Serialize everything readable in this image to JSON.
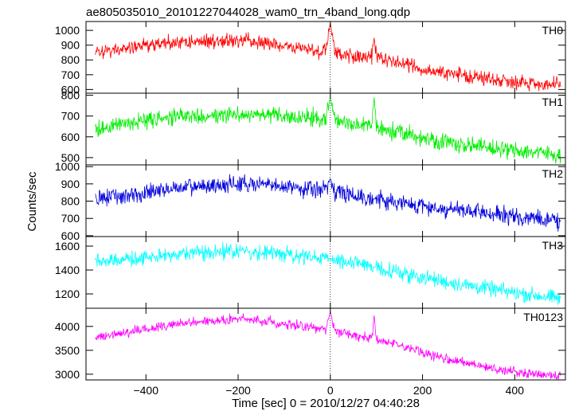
{
  "chart_data": {
    "type": "line",
    "title": "ae805035010_20101227044028_wam0_trn_4band_long.qdp",
    "xlabel": "Time [sec] 0 = 2010/12/27 04:40:28",
    "ylabel": "Counts/sec",
    "xlim": [
      -530,
      510
    ],
    "x_ticks": [
      -400,
      -200,
      0,
      200,
      400
    ],
    "x_tick_labels": [
      "−400",
      "−200",
      "0",
      "200",
      "400"
    ],
    "grid": false,
    "panels": [
      {
        "name": "TH0",
        "color": "#ff0000",
        "ylim": [
          575,
          1060
        ],
        "y_ticks": [
          600,
          700,
          800,
          900,
          1000
        ],
        "y_tick_labels": [
          "600",
          "700",
          "800",
          "900",
          "1000"
        ],
        "x": [
          -510,
          -450,
          -400,
          -350,
          -300,
          -250,
          -200,
          -150,
          -100,
          -50,
          -10,
          0,
          10,
          50,
          90,
          95,
          100,
          150,
          200,
          250,
          300,
          350,
          400,
          450,
          500
        ],
        "y": [
          850,
          870,
          900,
          915,
          925,
          930,
          930,
          915,
          890,
          875,
          860,
          1050,
          850,
          830,
          820,
          950,
          810,
          780,
          740,
          710,
          690,
          670,
          655,
          640,
          625
        ],
        "noise": 55
      },
      {
        "name": "TH1",
        "color": "#00ee00",
        "ylim": [
          465,
          810
        ],
        "y_ticks": [
          500,
          600,
          700,
          800
        ],
        "y_tick_labels": [
          "500",
          "600",
          "700",
          "800"
        ],
        "x": [
          -510,
          -450,
          -400,
          -350,
          -300,
          -250,
          -200,
          -150,
          -100,
          -50,
          -10,
          0,
          10,
          50,
          90,
          95,
          100,
          150,
          200,
          250,
          300,
          350,
          400,
          450,
          500
        ],
        "y": [
          635,
          660,
          680,
          690,
          700,
          705,
          710,
          705,
          700,
          690,
          685,
          790,
          680,
          660,
          650,
          790,
          645,
          620,
          595,
          575,
          560,
          545,
          535,
          525,
          510
        ],
        "noise": 45
      },
      {
        "name": "TH2",
        "color": "#0000dd",
        "ylim": [
          595,
          1010
        ],
        "y_ticks": [
          600,
          700,
          800,
          900,
          1000
        ],
        "y_tick_labels": [
          "600",
          "700",
          "800",
          "900",
          "1000"
        ],
        "x": [
          -510,
          -450,
          -400,
          -350,
          -300,
          -250,
          -200,
          -150,
          -100,
          -50,
          -10,
          0,
          10,
          50,
          100,
          150,
          200,
          250,
          300,
          350,
          400,
          450,
          500
        ],
        "y": [
          815,
          830,
          850,
          870,
          880,
          890,
          900,
          895,
          885,
          875,
          865,
          930,
          860,
          835,
          810,
          790,
          770,
          755,
          740,
          725,
          710,
          700,
          680
        ],
        "noise": 55
      },
      {
        "name": "TH3",
        "color": "#00ffff",
        "ylim": [
          1080,
          1680
        ],
        "y_ticks": [
          1200,
          1400,
          1600
        ],
        "y_tick_labels": [
          "1200",
          "1400",
          "1600"
        ],
        "x": [
          -510,
          -450,
          -400,
          -350,
          -300,
          -250,
          -200,
          -150,
          -100,
          -50,
          0,
          50,
          100,
          150,
          200,
          250,
          300,
          350,
          400,
          450,
          500
        ],
        "y": [
          1470,
          1490,
          1510,
          1530,
          1545,
          1555,
          1560,
          1550,
          1530,
          1510,
          1490,
          1460,
          1420,
          1380,
          1340,
          1300,
          1270,
          1240,
          1210,
          1185,
          1160
        ],
        "noise": 70
      },
      {
        "name": "TH0123",
        "color": "#ff00ff",
        "ylim": [
          2880,
          4380
        ],
        "y_ticks": [
          3000,
          3500,
          4000
        ],
        "y_tick_labels": [
          "3000",
          "3500",
          "4000"
        ],
        "x": [
          -510,
          -450,
          -400,
          -350,
          -300,
          -250,
          -200,
          -150,
          -100,
          -50,
          -10,
          0,
          10,
          50,
          90,
          95,
          100,
          150,
          200,
          250,
          300,
          350,
          400,
          450,
          500
        ],
        "y": [
          3780,
          3860,
          3950,
          4020,
          4080,
          4130,
          4150,
          4120,
          4060,
          3990,
          3930,
          4310,
          3900,
          3820,
          3740,
          4230,
          3720,
          3590,
          3450,
          3330,
          3220,
          3120,
          3050,
          3010,
          2960
        ],
        "noise": 110
      }
    ]
  }
}
